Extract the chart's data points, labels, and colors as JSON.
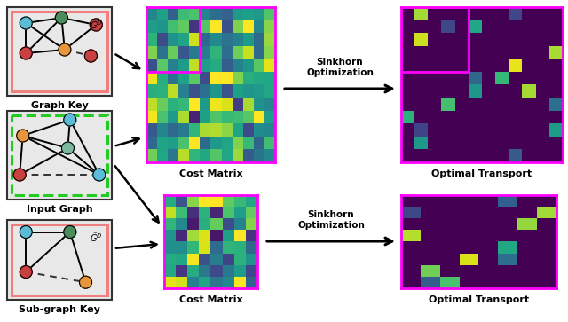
{
  "graph_key_label": "Graph Key",
  "input_graph_label": "Input Graph",
  "subgraph_key_label": "Sub-graph Key",
  "cost_matrix_label": "Cost Matrix",
  "optimal_transport_label": "Optimal Transport",
  "sinkhorn_label": "Sinkhorn\nOptimization",
  "bg_color": "#e8e8e8",
  "node_colors_gk": [
    "#5bbcd6",
    "#4a8c5c",
    "#c94040",
    "#5bbcd6",
    "#e8963c",
    "#7ab8a0"
  ],
  "node_colors_ig": [
    "#5bbcd6",
    "#e8963c",
    "#7ab8a0",
    "#c94040",
    "#5bbcd6"
  ],
  "node_colors_sk": [
    "#5bbcd6",
    "#4a8c5c",
    "#c94040",
    "#e8963c"
  ],
  "magenta": "#ff00ff",
  "green_border": "#22cc22",
  "salmon_border": "#f08080",
  "outer_border": "#222222"
}
